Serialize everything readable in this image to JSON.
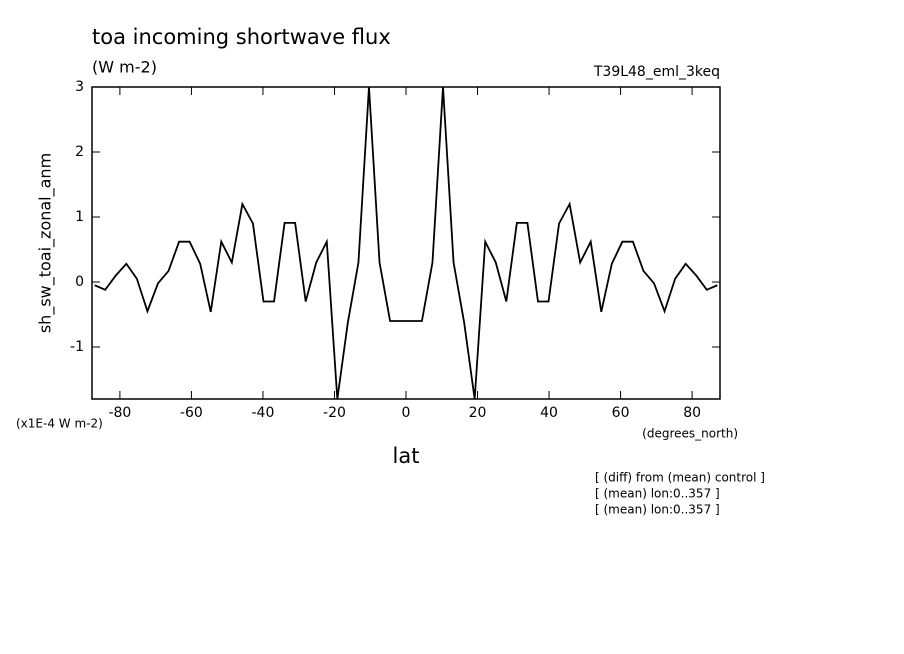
{
  "chart_data": {
    "type": "line",
    "title": "toa incoming shortwave flux",
    "subtitle": "(W m-2)",
    "run_label": "T39L48_eml_3keq",
    "y_label": "sh_sw_toai_zonal_anm",
    "y_units": "(x1E-4 W m-2)",
    "x_label": "lat",
    "x_units": "(degrees_north)",
    "notes": [
      "[ (diff) from (mean) control ]",
      "[ (mean) lon:0..357 ]",
      "[ (mean) lon:0..357 ]"
    ],
    "x": [
      -87.05,
      -84.1,
      -81.15,
      -78.2,
      -75.25,
      -72.3,
      -69.35,
      -66.4,
      -63.45,
      -60.5,
      -57.55,
      -54.6,
      -51.65,
      -48.7,
      -45.75,
      -42.8,
      -39.85,
      -36.9,
      -33.95,
      -31,
      -28.05,
      -25.1,
      -22.15,
      -19.2,
      -16.25,
      -13.3,
      -10.35,
      -7.4,
      -4.45,
      -1.5,
      1.5,
      4.45,
      7.4,
      10.35,
      13.3,
      16.25,
      19.2,
      22.15,
      25.1,
      28.05,
      31,
      33.95,
      36.9,
      39.85,
      42.8,
      45.75,
      48.7,
      51.65,
      54.6,
      57.55,
      60.5,
      63.45,
      66.4,
      69.35,
      72.3,
      75.25,
      78.2,
      81.15,
      84.1,
      87.05
    ],
    "series": [
      {
        "name": "sh_sw_toai_zonal_anm",
        "color": "#000000",
        "values": [
          -0.05,
          -0.12,
          0.1,
          0.28,
          0.05,
          -0.45,
          -0.02,
          0.17,
          0.62,
          0.62,
          0.28,
          -0.46,
          0.62,
          0.3,
          1.2,
          0.9,
          -0.3,
          -0.3,
          0.91,
          0.91,
          -0.3,
          0.3,
          0.62,
          -1.8,
          -0.62,
          0.3,
          3,
          0.3,
          -0.6,
          -0.6,
          -0.6,
          -0.6,
          0.3,
          3,
          0.3,
          -0.62,
          -1.8,
          0.62,
          0.3,
          -0.3,
          0.91,
          0.91,
          -0.3,
          -0.3,
          0.9,
          1.2,
          0.3,
          0.62,
          -0.46,
          0.28,
          0.62,
          0.62,
          0.17,
          -0.02,
          -0.45,
          0.05,
          0.28,
          0.1,
          -0.12,
          -0.05
        ]
      }
    ],
    "xlim": [
      -87.8,
      87.8
    ],
    "ylim": [
      -1.8,
      3
    ],
    "xticks": [
      -80,
      -60,
      -40,
      -20,
      0,
      20,
      40,
      60,
      80
    ],
    "yticks": [
      -1,
      0,
      1,
      2,
      3
    ],
    "grid": false
  }
}
